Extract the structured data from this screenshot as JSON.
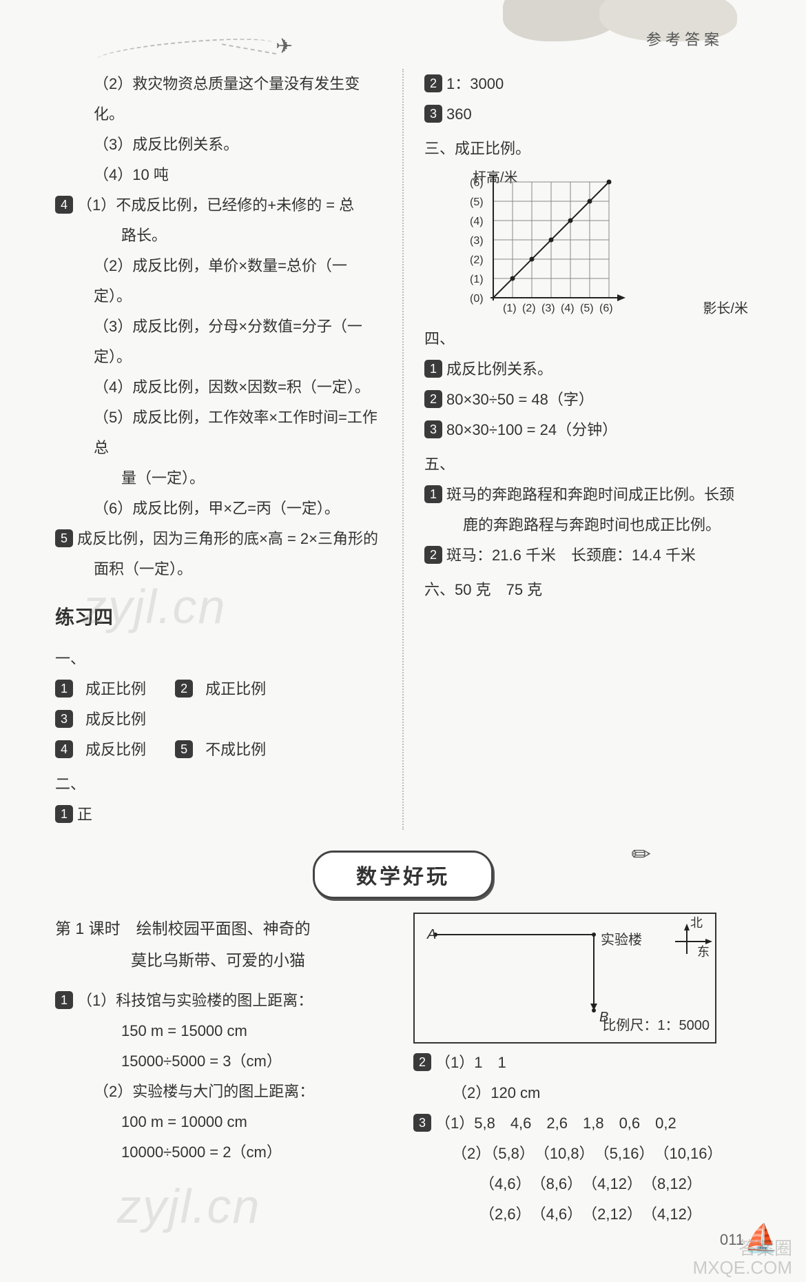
{
  "header": {
    "label": "参考答案"
  },
  "left": {
    "l2": "（2）救灾物资总质量这个量没有发生变化。",
    "l3": "（3）成反比例关系。",
    "l4": "（4）10 吨",
    "q4_1a": "（1）不成反比例，已经修的+未修的 = 总",
    "q4_1b": "路长。",
    "q4_2": "（2）成反比例，单价×数量=总价（一定）。",
    "q4_3": "（3）成反比例，分母×分数值=分子（一定）。",
    "q4_4": "（4）成反比例，因数×因数=积（一定）。",
    "q4_5a": "（5）成反比例，工作效率×工作时间=工作总",
    "q4_5b": "量（一定）。",
    "q4_6": "（6）成反比例，甲×乙=丙（一定）。",
    "q5a": "成反比例，因为三角形的底×高 = 2×三角形的",
    "q5b": "面积（一定）。",
    "ex4_title": "练习四",
    "sec1": "一、",
    "s1_1": "成正比例",
    "s1_2": "成正比例",
    "s1_3": "成反比例",
    "s1_4": "成反比例",
    "s1_5": "不成比例",
    "sec2": "二、",
    "s2_1": "正"
  },
  "right": {
    "r2": "1：3000",
    "r3": "360",
    "sec3": "三、成正比例。",
    "chart": {
      "ylabel": "杆高/米",
      "xlabel": "影长/米",
      "yticks": [
        "(6)",
        "(5)",
        "(4)",
        "(3)",
        "(2)",
        "(1)",
        "(0)"
      ],
      "xticks": [
        "(1)",
        "(2)",
        "(3)",
        "(4)",
        "(5)",
        "(6)"
      ],
      "grid_color": "#888",
      "line_color": "#222",
      "point_color": "#222",
      "bg": "#ffffff",
      "cell": 28
    },
    "sec4": "四、",
    "r4_1": "成反比例关系。",
    "r4_2": "80×30÷50 = 48（字）",
    "r4_3": "80×30÷100 = 24（分钟）",
    "sec5": "五、",
    "r5_1a": "斑马的奔跑路程和奔跑时间成正比例。长颈",
    "r5_1b": "鹿的奔跑路程与奔跑时间也成正比例。",
    "r5_2": "斑马：21.6 千米　长颈鹿：14.4 千米",
    "sec6": "六、50 克　75 克"
  },
  "banner": "数学好玩",
  "lower_left": {
    "title_a": "第 1 课时　绘制校园平面图、神奇的",
    "title_b": "莫比乌斯带、可爱的小猫",
    "q1_1a": "（1）科技馆与实验楼的图上距离：",
    "q1_1b": "150 m = 15000 cm",
    "q1_1c": "15000÷5000 = 3（cm）",
    "q1_2a": "（2）实验楼与大门的图上距离：",
    "q1_2b": "100 m = 10000 cm",
    "q1_2c": "10000÷5000 = 2（cm）"
  },
  "lower_right": {
    "diagram": {
      "A": "A",
      "B": "B",
      "lab": "实验楼",
      "north": "北",
      "east": "东",
      "scale": "比例尺：1：5000"
    },
    "q2_1": "（1）1　1",
    "q2_2": "（2）120 cm",
    "q3_1": "（1）5,8　4,6　2,6　1,8　0,6　0,2",
    "q3_2a": "（2）（5,8）　（10,8）　（5,16）　（10,16）",
    "q3_2b": "（4,6）　（8,6）　（4,12）　（8,12）",
    "q3_2c": "（2,6）　（4,6）　（2,12）　（4,12）"
  },
  "watermark": "zyjl.cn",
  "page": "011",
  "footer": {
    "a": "答案圈",
    "b": "MXQE.COM"
  }
}
